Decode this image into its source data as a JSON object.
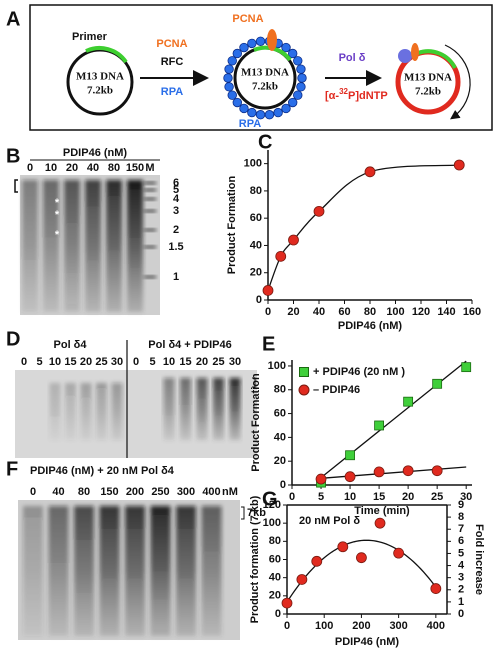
{
  "panel_a": {
    "label": "A",
    "primer": "Primer",
    "template": "M13 DNA",
    "size": "7.2kb",
    "pcna": "PCNA",
    "rfc": "RFC",
    "rpa": "RPA",
    "pol": "Pol δ",
    "nucleotide_pre": "[α-",
    "isotope": "32",
    "nucleotide_post": "P]dNTP"
  },
  "panel_b": {
    "label": "B",
    "header": "PDIP46 (nM)",
    "lanes": [
      "0",
      "10",
      "20",
      "40",
      "80",
      "150"
    ],
    "marker_lane": "M",
    "marker_sizes": [
      "6",
      "5",
      "4",
      "3",
      "2",
      "1.5",
      "1"
    ],
    "asterisk": "*"
  },
  "panel_d": {
    "label": "D",
    "left_header": "Pol δ4",
    "right_header": "Pol δ4 + PDIP46",
    "lanes": [
      "0",
      "5",
      "10",
      "15",
      "20",
      "25",
      "30"
    ]
  },
  "panel_f": {
    "label": "F",
    "header": "PDIP46 (nM) + 20 nM Pol δ4",
    "lanes": [
      "0",
      "40",
      "80",
      "150",
      "200",
      "250",
      "300",
      "400"
    ],
    "unit": "nM",
    "band": "7kb"
  },
  "chart_data": [
    {
      "label": "C",
      "type": "scatter",
      "x": [
        0,
        10,
        20,
        40,
        80,
        150
      ],
      "values": [
        7,
        32,
        44,
        65,
        94,
        99
      ],
      "color": "#e02a1f",
      "marker": "circle",
      "fit": "curve",
      "xlim": [
        0,
        160
      ],
      "xticks": [
        0,
        20,
        40,
        60,
        80,
        100,
        120,
        140,
        160
      ],
      "ylim": [
        0,
        110
      ],
      "yticks": [
        0,
        20,
        40,
        60,
        80,
        100
      ],
      "xlabel": "PDIP46 (nM)",
      "ylabel": "Product Formation"
    },
    {
      "label": "E",
      "type": "scatter",
      "x": [
        5,
        10,
        15,
        20,
        25,
        30
      ],
      "series": [
        {
          "name": "+ PDIP46 (20 nM )",
          "color": "#3fcf3a",
          "marker": "square",
          "values": [
            2,
            25,
            50,
            70,
            85,
            99
          ]
        },
        {
          "name": "– PDIP46",
          "color": "#e02a1f",
          "marker": "circle",
          "values": [
            5,
            7,
            11,
            12,
            12,
            null
          ]
        }
      ],
      "fit": "linear",
      "xlim": [
        0,
        31
      ],
      "xticks": [
        0,
        5,
        10,
        15,
        20,
        25,
        30
      ],
      "ylim": [
        0,
        105
      ],
      "yticks": [
        0,
        20,
        40,
        60,
        80,
        100
      ],
      "xlabel": "Time (min)",
      "ylabel": "Product Formation",
      "legend": "upper left"
    },
    {
      "label": "G",
      "type": "scatter",
      "title": "20 nM Pol δ",
      "x": [
        0,
        40,
        80,
        150,
        200,
        250,
        300,
        400
      ],
      "values": [
        12,
        38,
        58,
        74,
        62,
        100,
        67,
        28
      ],
      "color": "#e02a1f",
      "marker": "circle",
      "fit": "quadratic",
      "xlim": [
        0,
        430
      ],
      "xticks": [
        0,
        100,
        200,
        300,
        400
      ],
      "ylim": [
        0,
        120
      ],
      "yticks": [
        0,
        20,
        40,
        60,
        80,
        100,
        120
      ],
      "y2lim": [
        0,
        9
      ],
      "y2ticks": [
        0,
        1,
        2,
        3,
        4,
        5,
        6,
        7,
        8,
        9
      ],
      "xlabel": "PDIP46 (nM)",
      "ylabel": "Product formation (7 kb)",
      "y2label": "Fold increase"
    }
  ]
}
